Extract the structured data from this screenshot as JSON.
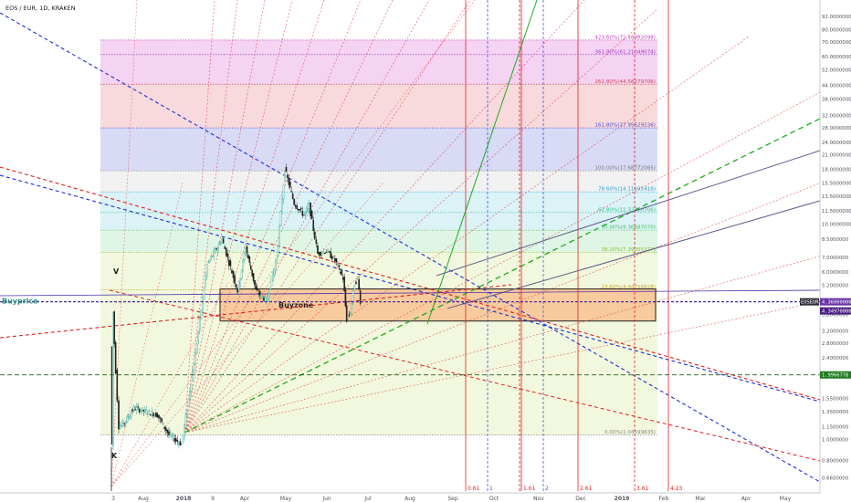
{
  "chart_title": "EOS / EUR, 1D, KRAKEN",
  "chart_data": {
    "type": "candlestick",
    "symbol": "EOS / EUR",
    "interval": "1D",
    "exchange": "KRAKEN",
    "y_scale": "log",
    "ylim": [
      0.6,
      92
    ],
    "x_tick_labels": [
      "3",
      "Aug",
      "2018",
      "9",
      "Apr",
      "May",
      "Jun",
      "Jul",
      "Aug",
      "Sep",
      "Oct",
      "Nov",
      "Dec",
      "2019",
      "Feb",
      "Mar",
      "Apr",
      "May"
    ],
    "y_tick_labels": [
      "92.0000000",
      "80.0000000",
      "70.0000000",
      "60.0000000",
      "52.0000000",
      "44.0000000",
      "38.0000000",
      "32.0000000",
      "28.0000000",
      "24.0000000",
      "21.0000000",
      "18.0000000",
      "15.5000000",
      "13.5000000",
      "11.5000000",
      "10.0000000",
      "8.5000000",
      "7.0000000",
      "6.0000000",
      "5.2000000",
      "4.4000000",
      "3.8000000",
      "3.2000000",
      "2.8000000",
      "2.4000000",
      "2.0000000",
      "1.5500000",
      "1.3500000",
      "1.1500000",
      "1.0000000",
      "0.8000000",
      "0.6650000"
    ],
    "price_series": [
      {
        "t": "2017-07-01",
        "price": 2.7
      },
      {
        "t": "2017-07-03",
        "price": 0.95
      },
      {
        "t": "2017-07-05",
        "price": 3.9
      },
      {
        "t": "2017-07-07",
        "price": 2.8
      },
      {
        "t": "2017-07-15",
        "price": 1.15
      },
      {
        "t": "2017-07-25",
        "price": 1.2
      },
      {
        "t": "2017-08-10",
        "price": 1.4
      },
      {
        "t": "2017-09-01",
        "price": 1.35
      },
      {
        "t": "2017-09-20",
        "price": 1.3
      },
      {
        "t": "2017-10-10",
        "price": 1.05
      },
      {
        "t": "2017-11-01",
        "price": 0.95
      },
      {
        "t": "2017-11-25",
        "price": 2.5
      },
      {
        "t": "2017-12-15",
        "price": 6.5
      },
      {
        "t": "2018-01-10",
        "price": 8.5
      },
      {
        "t": "2018-02-06",
        "price": 4.9
      },
      {
        "t": "2018-02-20",
        "price": 7.8
      },
      {
        "t": "2018-03-10",
        "price": 4.9
      },
      {
        "t": "2018-03-28",
        "price": 4.4
      },
      {
        "t": "2018-04-15",
        "price": 7.0
      },
      {
        "t": "2018-04-29",
        "price": 18.0
      },
      {
        "t": "2018-05-15",
        "price": 12.5
      },
      {
        "t": "2018-06-01",
        "price": 11.0
      },
      {
        "t": "2018-06-10",
        "price": 12.2
      },
      {
        "t": "2018-06-25",
        "price": 7.3
      },
      {
        "t": "2018-07-10",
        "price": 7.5
      },
      {
        "t": "2018-07-25",
        "price": 6.8
      },
      {
        "t": "2018-08-08",
        "price": 5.6
      },
      {
        "t": "2018-08-14",
        "price": 3.6
      },
      {
        "t": "2018-08-20",
        "price": 3.9
      },
      {
        "t": "2018-08-28",
        "price": 5.3
      },
      {
        "t": "2018-09-02",
        "price": 5.6
      },
      {
        "t": "2018-09-07",
        "price": 4.4
      }
    ],
    "fibonacci_levels": [
      {
        "label": "423.60%(71.48982098)",
        "price": 71.49
      },
      {
        "label": "361.80%(61.21049074)",
        "price": 61.21
      },
      {
        "label": "261.80%(44.58279706)",
        "price": 44.58
      },
      {
        "label": "161.80%(27.95529236)",
        "price": 27.96
      },
      {
        "label": "100.00%(17.68772065)",
        "price": 17.69
      },
      {
        "label": "78.60%(14.11695418)",
        "price": 14.12
      },
      {
        "label": "61.80%(11.32310706)",
        "price": 11.32
      },
      {
        "label": "50.00%(9.36687070)",
        "price": 9.37
      },
      {
        "label": "38.20%(7.39055377)",
        "price": 7.39
      },
      {
        "label": "23.60%(4.94756628)",
        "price": 4.95
      },
      {
        "label": "0.00%(1.04599835)",
        "price": 1.05
      }
    ],
    "price_tags": [
      {
        "label": "EOSEUR",
        "value": "4.36000000"
      },
      {
        "value": "4.34970000"
      },
      {
        "value": "1.9966778"
      }
    ],
    "time_cycle_labels": [
      "0.61",
      "1",
      "1.61",
      "2",
      "2.61",
      "3.61",
      "4.23"
    ],
    "annotations": [
      "Buyprice",
      "Buyzone",
      "V",
      "K"
    ]
  },
  "colors": {
    "fib_purple": "#f1c4ef",
    "fib_red": "#f5cdd0",
    "fib_blue": "#cbcdf3",
    "fib_grey": "#ececec",
    "fib_cyan": "#cfeef4",
    "fib_green": "#d4f3dd",
    "fib_yellow": "#edf5d2",
    "buyzone": "#f9c393",
    "buyprice_line": "#4a2e9c",
    "up_candle": "#26a69a",
    "down_candle": "#1f1f1f",
    "price_tag": "#6a32a8"
  }
}
